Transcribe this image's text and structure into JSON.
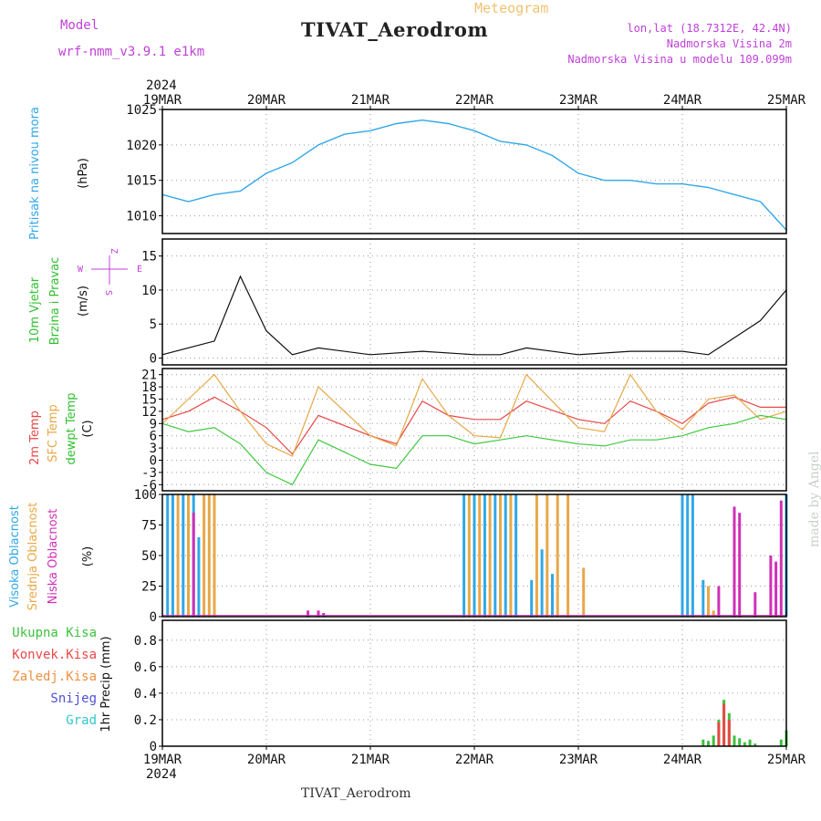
{
  "header": {
    "title": "TIVAT_Aerodrom",
    "subtitle": "Meteogram",
    "model_label": "Model",
    "model_value": "wrf-nmm_v3.9.1  e1km",
    "location_lines": [
      "lon,lat (18.7312E, 42.4N)",
      "Nadmorska Visina 2m",
      "Nadmorska Visina u modelu 109.099m"
    ],
    "footer_title": "TIVAT_Aerodrom",
    "made_by": "made by Angel"
  },
  "chart_data": [
    {
      "id": "pressure",
      "type": "line",
      "year": "2024",
      "xticks": [
        "19MAR",
        "20MAR",
        "21MAR",
        "22MAR",
        "23MAR",
        "24MAR",
        "25MAR"
      ],
      "ylabel_lines": [
        "Pritisak na nivou mora",
        "(hPa)"
      ],
      "ylim": [
        1007.5,
        1025
      ],
      "yticks": [
        1010,
        1015,
        1020,
        1025
      ],
      "grid": true,
      "color": "#30a8e8",
      "x": [
        0,
        0.25,
        0.5,
        0.75,
        1,
        1.25,
        1.5,
        1.75,
        2,
        2.25,
        2.5,
        2.75,
        3,
        3.25,
        3.5,
        3.75,
        4,
        4.25,
        4.5,
        4.75,
        5,
        5.25,
        5.5,
        5.75,
        6
      ],
      "values": [
        1013,
        1012,
        1013,
        1013.5,
        1016,
        1017.5,
        1020,
        1021.5,
        1022,
        1023,
        1023.5,
        1023,
        1022,
        1020.5,
        1020,
        1018.5,
        1016,
        1015,
        1015,
        1014.5,
        1014.5,
        1014,
        1013,
        1012,
        1008
      ]
    },
    {
      "id": "wind",
      "type": "line",
      "ylabel_lines": [
        "10m Vjetar",
        "Brzina i Pravac",
        "(m/s)"
      ],
      "legend_glyphs": [
        "Z",
        "W",
        "E",
        "S"
      ],
      "ylim": [
        -1,
        17.5
      ],
      "yticks": [
        0,
        5,
        10,
        15
      ],
      "grid": true,
      "series": [
        {
          "name": "10m Vjetar",
          "color": "#111111",
          "x": [
            0,
            0.5,
            0.75,
            1,
            1.25,
            1.5,
            2,
            2.5,
            3,
            3.25,
            3.5,
            4,
            4.5,
            5,
            5.25,
            5.5,
            5.75,
            6
          ],
          "values": [
            0.5,
            2.5,
            12,
            4,
            0.5,
            1.5,
            0.5,
            1,
            0.5,
            0.5,
            1.5,
            0.5,
            1,
            1,
            0.5,
            3,
            5.5,
            10
          ]
        }
      ]
    },
    {
      "id": "temperature",
      "type": "line",
      "ylabel_lines": [
        "2m Temp",
        "SFC Temp",
        "dewpt Temp",
        "(C)"
      ],
      "ylim": [
        -7.5,
        22.5
      ],
      "yticks": [
        -6,
        -3,
        0,
        3,
        6,
        9,
        12,
        15,
        18,
        21
      ],
      "grid": true,
      "series": [
        {
          "name": "2m Temp",
          "color": "#e84848",
          "x": [
            0,
            0.25,
            0.5,
            0.75,
            1,
            1.25,
            1.5,
            2,
            2.25,
            2.5,
            2.75,
            3,
            3.25,
            3.5,
            4,
            4.25,
            4.5,
            4.75,
            5,
            5.25,
            5.5,
            5.75,
            6
          ],
          "values": [
            10,
            12,
            15.5,
            12,
            8,
            1.5,
            11,
            6,
            4,
            14.5,
            11,
            10,
            10,
            14.5,
            10,
            9,
            14.5,
            12,
            9,
            14,
            15.5,
            13,
            13
          ]
        },
        {
          "name": "SFC Temp",
          "color": "#e8a848",
          "x": [
            0,
            0.25,
            0.5,
            0.75,
            1,
            1.25,
            1.5,
            2,
            2.25,
            2.5,
            2.75,
            3,
            3.25,
            3.5,
            4,
            4.25,
            4.5,
            4.75,
            5,
            5.25,
            5.5,
            5.75,
            6
          ],
          "values": [
            9,
            15,
            21,
            12,
            4,
            1,
            18,
            6,
            3.5,
            20,
            11,
            6,
            5.5,
            21,
            8,
            7,
            21,
            12,
            7.5,
            15,
            16,
            10,
            12
          ]
        },
        {
          "name": "dewpt Temp",
          "color": "#40c840",
          "x": [
            0,
            0.25,
            0.5,
            0.75,
            1,
            1.25,
            1.5,
            2,
            2.25,
            2.5,
            2.75,
            3,
            3.25,
            3.5,
            4,
            4.25,
            4.5,
            4.75,
            5,
            5.25,
            5.5,
            5.75,
            6
          ],
          "values": [
            9,
            7,
            8,
            4,
            -3,
            -6,
            5,
            -1,
            -2,
            6,
            6,
            4,
            5,
            6,
            4,
            3.5,
            5,
            5,
            6,
            8,
            9,
            11,
            10
          ]
        }
      ]
    },
    {
      "id": "clouds",
      "type": "bar",
      "ylabel_lines": [
        "Visoka Oblacnost",
        "Srednja Oblacnost",
        "Niska Oblacnost",
        "(%)"
      ],
      "ylim": [
        0,
        100
      ],
      "yticks": [
        0,
        25,
        50,
        75,
        100
      ],
      "grid": true,
      "series": [
        {
          "name": "Visoka Oblacnost",
          "color": "#30a8e8",
          "x": [
            0.05,
            0.1,
            0.2,
            0.3,
            0.35,
            2.9,
            3,
            3.1,
            3.2,
            3.3,
            3.4,
            3.55,
            3.65,
            3.75,
            5,
            5.05,
            5.1,
            5.2,
            6
          ],
          "values": [
            100,
            100,
            100,
            100,
            65,
            100,
            100,
            100,
            100,
            100,
            100,
            30,
            55,
            35,
            100,
            100,
            100,
            30,
            100
          ]
        },
        {
          "name": "Srednja Oblacnost",
          "color": "#e8a848",
          "x": [
            0.15,
            0.25,
            0.4,
            0.45,
            0.5,
            2.95,
            3.05,
            3.15,
            3.25,
            3.35,
            3.6,
            3.7,
            3.8,
            3.9,
            4.05,
            5.25,
            5.3
          ],
          "values": [
            100,
            100,
            100,
            100,
            100,
            100,
            100,
            100,
            100,
            100,
            100,
            100,
            100,
            100,
            40,
            25,
            5
          ]
        },
        {
          "name": "Niska Oblacnost",
          "color": "#d030b8",
          "x": [
            0.3,
            1.4,
            1.5,
            1.55,
            5.35,
            5.5,
            5.55,
            5.7,
            5.85,
            5.9,
            5.95
          ],
          "values": [
            85,
            5,
            5,
            3,
            25,
            90,
            85,
            20,
            50,
            45,
            95
          ]
        }
      ]
    },
    {
      "id": "precip",
      "type": "bar",
      "ylabel_lines": [
        "1hr Precip (mm)"
      ],
      "legend": [
        "Ukupna Kisa",
        "Konvek.Kisa",
        "Zaledj.Kisa",
        "Snijeg",
        "Grad"
      ],
      "legend_colors": [
        "#40c040",
        "#e84848",
        "#f09040",
        "#5050d8",
        "#30c8c8"
      ],
      "xticks": [
        "19MAR",
        "20MAR",
        "21MAR",
        "22MAR",
        "23MAR",
        "24MAR",
        "25MAR"
      ],
      "year": "2024",
      "ylim": [
        0,
        0.95
      ],
      "yticks": [
        0,
        0.2,
        0.4,
        0.6,
        0.8
      ],
      "grid": true,
      "series": [
        {
          "name": "Ukupna Kisa",
          "color": "#40c040",
          "x": [
            5.2,
            5.25,
            5.3,
            5.35,
            5.4,
            5.45,
            5.5,
            5.55,
            5.6,
            5.65,
            5.7,
            5.95,
            6
          ],
          "values": [
            0.05,
            0.04,
            0.08,
            0.2,
            0.35,
            0.25,
            0.08,
            0.06,
            0.03,
            0.05,
            0.02,
            0.05,
            0.12
          ]
        },
        {
          "name": "Konvek.Kisa",
          "color": "#e84848",
          "x": [
            5.35,
            5.4,
            5.45
          ],
          "values": [
            0.18,
            0.32,
            0.2
          ]
        }
      ]
    }
  ]
}
